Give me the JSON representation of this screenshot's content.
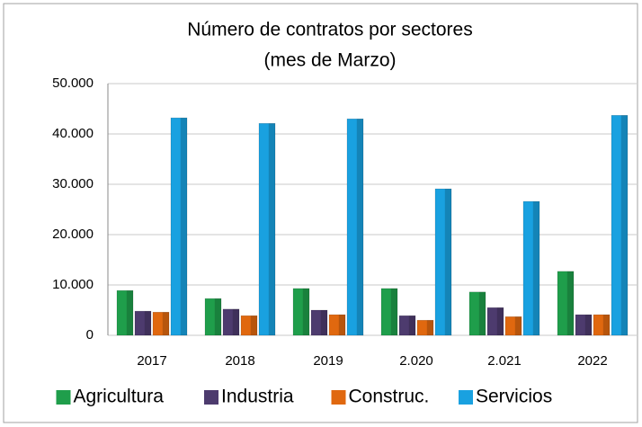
{
  "chart_data": {
    "type": "bar",
    "title": "Número de contratos por sectores",
    "subtitle": "(mes de Marzo)",
    "categories": [
      "2017",
      "2018",
      "2019",
      "2.020",
      "2.021",
      "2022"
    ],
    "series": [
      {
        "name": "Agricultura",
        "color": "#1f9e4b",
        "values": [
          8900,
          7300,
          9300,
          9300,
          8600,
          12700
        ]
      },
      {
        "name": "Industria",
        "color": "#4d3b6e",
        "values": [
          4800,
          5200,
          5000,
          3900,
          5500,
          4100
        ]
      },
      {
        "name": "Construc.",
        "color": "#e0680f",
        "values": [
          4600,
          3900,
          4100,
          3000,
          3700,
          4100
        ]
      },
      {
        "name": "Servicios",
        "color": "#19a1e0",
        "values": [
          43200,
          42100,
          43000,
          29100,
          26600,
          43700
        ]
      }
    ],
    "ylim": [
      0,
      50000
    ],
    "yticks": [
      0,
      {
        "value": 10000,
        "label": "10.000"
      },
      {
        "value": 20000,
        "label": "20.000"
      },
      {
        "value": 30000,
        "label": "30.000"
      },
      {
        "value": 40000,
        "label": "40.000"
      },
      {
        "value": 50000,
        "label": "50.000"
      }
    ],
    "grid": true,
    "legend": "bottom"
  }
}
